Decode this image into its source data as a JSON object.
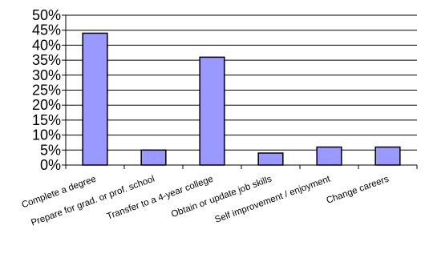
{
  "chart_data": {
    "type": "bar",
    "title": "",
    "xlabel": "",
    "ylabel": "",
    "categories": [
      "Complete a degree",
      "Prepare for grad. or prof. school",
      "Transfer to a 4-year college",
      "Obtain or update job skills",
      "Self improvement / enjoyment",
      "Change careers"
    ],
    "values": [
      44,
      5,
      36,
      4,
      6,
      6
    ],
    "ylim": [
      0,
      50
    ],
    "yticks": [
      0,
      5,
      10,
      15,
      20,
      25,
      30,
      35,
      40,
      45,
      50
    ],
    "ytick_labels": [
      "0%",
      "5%",
      "10%",
      "15%",
      "20%",
      "25%",
      "30%",
      "35%",
      "40%",
      "45%",
      "50%"
    ],
    "grid": true,
    "legend": "none",
    "colors": {
      "bar_fill": "#9999ff",
      "bar_stroke": "#000000",
      "grid": "#000000",
      "axis": "#000000"
    }
  }
}
